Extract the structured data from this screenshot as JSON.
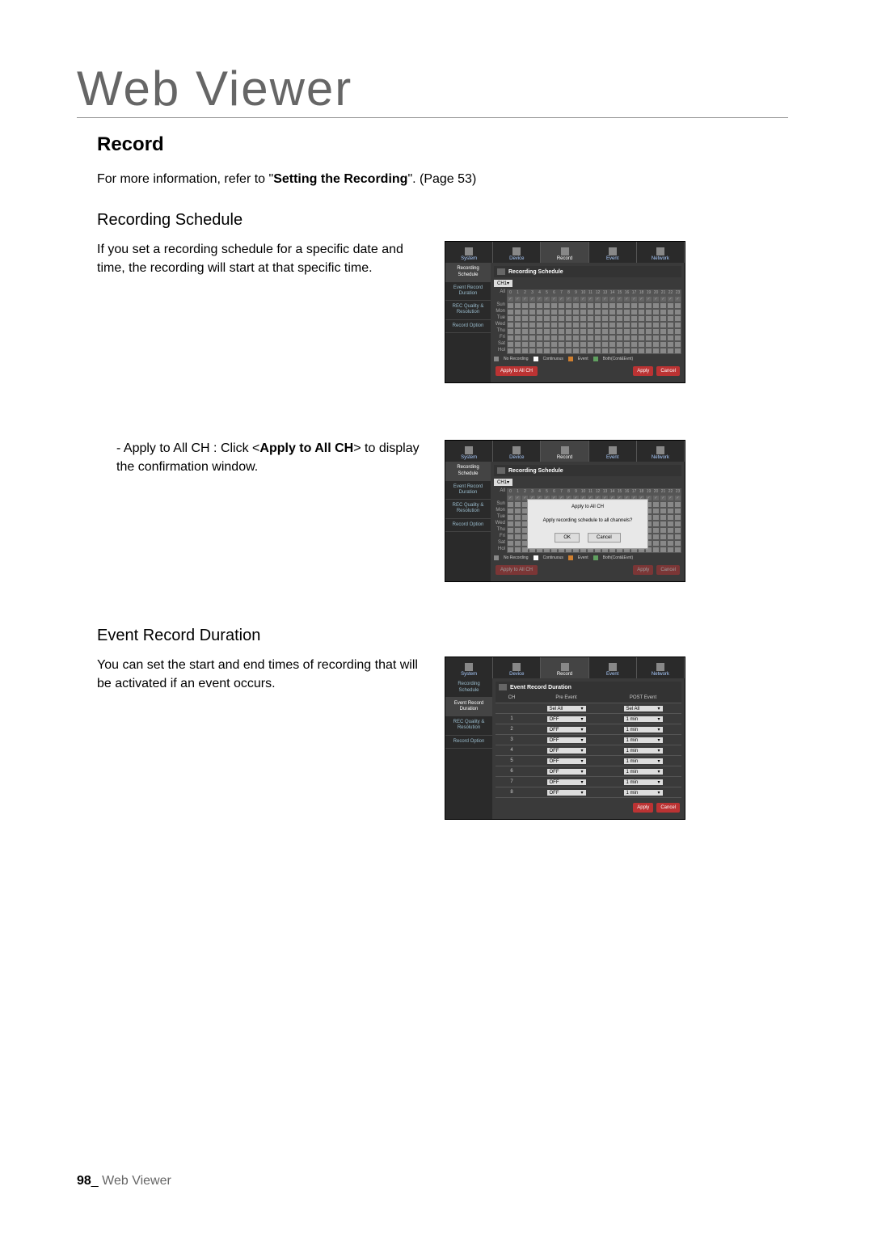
{
  "page": {
    "title": "Web Viewer",
    "heading1": "Record",
    "intro_prefix": "For more information, refer to \"",
    "intro_bold": "Setting the Recording",
    "intro_suffix": "\". (Page 53)",
    "subheading1": "Recording Schedule",
    "rs_text": "If you set a recording schedule for a specific date and time, the recording will start at that specific time.",
    "apply_prefix": "- Apply to All CH : Click <",
    "apply_bold": "Apply to All CH",
    "apply_suffix": "> to display the confirmation window.",
    "subheading2": "Event Record Duration",
    "erd_text": "You can set the start and end times of recording that will be activated if an event occurs."
  },
  "screenshot": {
    "tabs": [
      "System",
      "Device",
      "Record",
      "Event",
      "Network"
    ],
    "active_tab": 2,
    "sidebar": [
      "Recording Schedule",
      "Event Record Duration",
      "REC Quality & Resolution",
      "Record Option"
    ],
    "rs_title": "Recording Schedule",
    "ch_label": "CH1",
    "hours": [
      "0",
      "1",
      "2",
      "3",
      "4",
      "5",
      "6",
      "7",
      "8",
      "9",
      "10",
      "11",
      "12",
      "13",
      "14",
      "15",
      "16",
      "17",
      "18",
      "19",
      "20",
      "21",
      "22",
      "23"
    ],
    "all_label": "All",
    "days": [
      "Sun",
      "Mon",
      "Tue",
      "Wed",
      "Thu",
      "Fri",
      "Sat",
      "Hol"
    ],
    "legend": {
      "no_rec": "No Recording",
      "cont": "Continuous",
      "event": "Event",
      "both": "Both(Cont&Evnt)"
    },
    "legend_colors": {
      "no_rec": "#888888",
      "cont": "#ffffff",
      "event": "#d08030",
      "both": "#60a060"
    },
    "btn_apply_all": "Apply to All CH",
    "btn_apply": "Apply",
    "btn_cancel": "Cancel",
    "dialog": {
      "title": "Apply to All CH",
      "text": "Apply recording schedule to all channels?",
      "ok": "OK",
      "cancel": "Cancel"
    }
  },
  "erd": {
    "title": "Event Record Duration",
    "col_ch": "CH",
    "col_pre": "Pre Event",
    "col_post": "POST Event",
    "pre_header_value": "Sel All",
    "post_header_value": "Sel All",
    "rows": [
      {
        "ch": "1",
        "pre": "OFF",
        "post": "1 min"
      },
      {
        "ch": "2",
        "pre": "OFF",
        "post": "1 min"
      },
      {
        "ch": "3",
        "pre": "OFF",
        "post": "1 min"
      },
      {
        "ch": "4",
        "pre": "OFF",
        "post": "1 min"
      },
      {
        "ch": "5",
        "pre": "OFF",
        "post": "1 min"
      },
      {
        "ch": "6",
        "pre": "OFF",
        "post": "1 min"
      },
      {
        "ch": "7",
        "pre": "OFF",
        "post": "1 min"
      },
      {
        "ch": "8",
        "pre": "OFF",
        "post": "1 min"
      }
    ]
  },
  "footer": {
    "page_num": "98",
    "sep": "_",
    "section": "Web Viewer"
  },
  "colors": {
    "btn_red": "#b33333",
    "ss_bg": "#3a3a3a",
    "ss_dark": "#2a2a2a"
  }
}
